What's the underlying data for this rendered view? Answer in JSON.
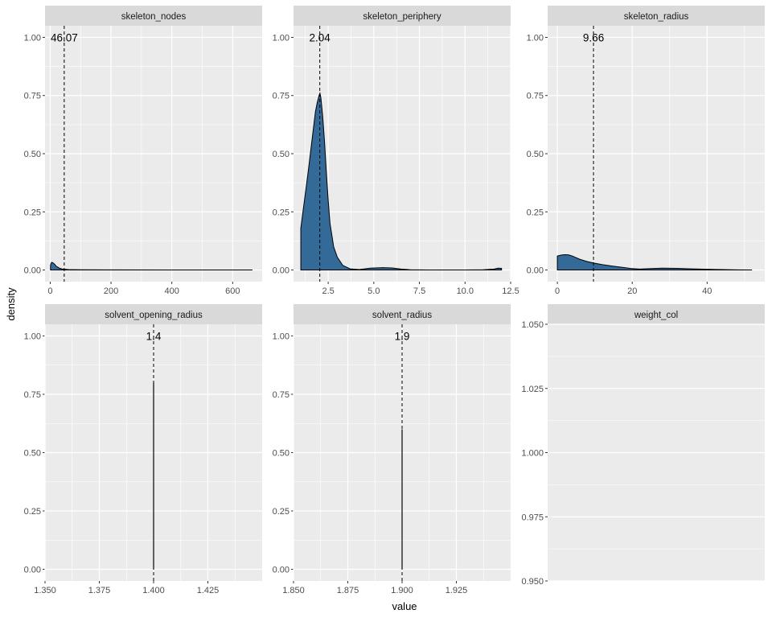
{
  "chart_data": {
    "type": "area",
    "xlabel": "value",
    "ylabel": "density",
    "fill_color": "#336a98",
    "panel_bg": "#ebebeb",
    "strip_bg": "#d9d9d9",
    "grid_color": "#ffffff",
    "grid": true,
    "facets": [
      {
        "name": "skeleton_nodes",
        "xlim": [
          -17,
          697
        ],
        "ylim": [
          -0.05,
          1.05
        ],
        "xticks": [
          0,
          200,
          400,
          600
        ],
        "xtick_labels": [
          "0",
          "200",
          "400",
          "600"
        ],
        "yticks": [
          0,
          0.25,
          0.5,
          0.75,
          1.0
        ],
        "ytick_labels": [
          "0.00",
          "0.25",
          "0.50",
          "0.75",
          "1.00"
        ],
        "mean": 46.07,
        "mean_label": "46.07",
        "density": {
          "x": [
            1,
            3,
            6,
            10,
            15,
            20,
            30,
            40,
            60,
            100,
            200,
            400,
            600,
            665
          ],
          "y": [
            0.02,
            0.03,
            0.033,
            0.03,
            0.024,
            0.016,
            0.008,
            0.004,
            0.002,
            0.001,
            0.0005,
            0.0003,
            0.0002,
            0
          ]
        }
      },
      {
        "name": "skeleton_periphery",
        "xlim": [
          0.6,
          12.5
        ],
        "ylim": [
          -0.05,
          1.05
        ],
        "xticks": [
          2.5,
          5,
          7.5,
          10,
          12.5
        ],
        "xtick_labels": [
          "2.5",
          "5.0",
          "7.5",
          "10.0",
          "12.5"
        ],
        "yticks": [
          0,
          0.25,
          0.5,
          0.75,
          1.0
        ],
        "ytick_labels": [
          "0.00",
          "0.25",
          "0.50",
          "0.75",
          "1.00"
        ],
        "mean": 2.04,
        "mean_label": "2.04",
        "density": {
          "x": [
            1.0,
            1.2,
            1.4,
            1.6,
            1.8,
            1.9,
            2.0,
            2.05,
            2.1,
            2.2,
            2.3,
            2.4,
            2.5,
            2.6,
            2.8,
            3.0,
            3.3,
            3.7,
            4.2,
            4.8,
            5.5,
            6.0,
            6.5,
            7.0,
            8.0,
            9.0,
            10.0,
            11.0,
            11.6,
            11.8,
            12.0
          ],
          "y": [
            0.18,
            0.3,
            0.42,
            0.55,
            0.68,
            0.72,
            0.75,
            0.76,
            0.74,
            0.66,
            0.55,
            0.42,
            0.3,
            0.2,
            0.1,
            0.055,
            0.02,
            0.005,
            0.002,
            0.008,
            0.01,
            0.009,
            0.004,
            0.001,
            0.0,
            0.0,
            0.0,
            0.001,
            0.004,
            0.008,
            0.007
          ]
        }
      },
      {
        "name": "skeleton_radius",
        "xlim": [
          -2.6,
          55.4
        ],
        "ylim": [
          -0.05,
          1.05
        ],
        "xticks": [
          0,
          20,
          40
        ],
        "xtick_labels": [
          "0",
          "20",
          "40"
        ],
        "yticks": [
          0,
          0.25,
          0.5,
          0.75,
          1.0
        ],
        "ytick_labels": [
          "0.00",
          "0.25",
          "0.50",
          "0.75",
          "1.00"
        ],
        "mean": 9.66,
        "mean_label": "9.66",
        "density": {
          "x": [
            0,
            1,
            2,
            3,
            4,
            5,
            6,
            8,
            10,
            12,
            15,
            18,
            20,
            22,
            25,
            28,
            32,
            36,
            40,
            44,
            48,
            52
          ],
          "y": [
            0.06,
            0.064,
            0.066,
            0.065,
            0.06,
            0.053,
            0.046,
            0.036,
            0.029,
            0.023,
            0.016,
            0.01,
            0.006,
            0.004,
            0.006,
            0.008,
            0.007,
            0.005,
            0.003,
            0.002,
            0.0005,
            0.0
          ]
        }
      },
      {
        "name": "solvent_opening_radius",
        "xlim": [
          1.35,
          1.45
        ],
        "ylim": [
          -0.05,
          1.05
        ],
        "xticks": [
          1.35,
          1.375,
          1.4,
          1.425
        ],
        "xtick_labels": [
          "1.350",
          "1.375",
          "1.400",
          "1.425"
        ],
        "yticks": [
          0,
          0.25,
          0.5,
          0.75,
          1.0
        ],
        "ytick_labels": [
          "0.00",
          "0.25",
          "0.50",
          "0.75",
          "1.00"
        ],
        "mean": 1.4,
        "mean_label": "1.4",
        "spike": {
          "x": 1.4,
          "y": 0.8
        }
      },
      {
        "name": "solvent_radius",
        "xlim": [
          1.85,
          1.95
        ],
        "ylim": [
          -0.05,
          1.05
        ],
        "xticks": [
          1.85,
          1.875,
          1.9,
          1.925
        ],
        "xtick_labels": [
          "1.850",
          "1.875",
          "1.900",
          "1.925"
        ],
        "yticks": [
          0,
          0.25,
          0.5,
          0.75,
          1.0
        ],
        "ytick_labels": [
          "0.00",
          "0.25",
          "0.50",
          "0.75",
          "1.00"
        ],
        "mean": 1.9,
        "mean_label": "1.9",
        "spike": {
          "x": 1.9,
          "y": 0.6
        }
      },
      {
        "name": "weight_col",
        "xlim": [
          0,
          1
        ],
        "ylim": [
          0.95,
          1.05
        ],
        "xticks": [],
        "xtick_labels": [],
        "yticks": [
          0.95,
          0.975,
          1.0,
          1.025,
          1.05
        ],
        "ytick_labels": [
          "0.950",
          "0.975",
          "1.000",
          "1.025",
          "1.050"
        ]
      }
    ]
  }
}
